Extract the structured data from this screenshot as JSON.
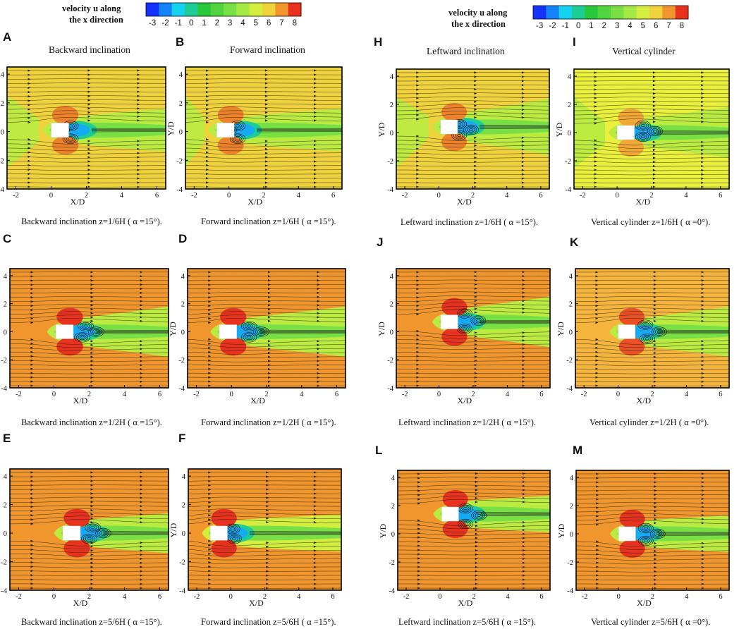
{
  "colors": {
    "u_low": "#1432ff",
    "u_cyan": "#14d2f0",
    "u_green": "#28c83c",
    "u_lightgreen": "#8ce646",
    "u_yellow": "#eaf03c",
    "u_lightorange": "#f5b43c",
    "u_orange": "#f0962d",
    "u_red": "#e8321e",
    "frame": "#000000",
    "bluff_body": "#ffffff",
    "streamline": "#222222"
  },
  "colorbars": [
    {
      "label_line1": "velocity u along",
      "label_line2": "the x direction",
      "ticks": [
        "-3",
        "-2",
        "-1",
        "0",
        "1",
        "2",
        "3",
        "4",
        "5",
        "6",
        "7",
        "8"
      ]
    },
    {
      "label_line1": "velocity u along",
      "label_line2": "the x direction",
      "ticks": [
        "-3",
        "-2",
        "-1",
        "0",
        "1",
        "2",
        "3",
        "4",
        "5",
        "6",
        "7",
        "8"
      ]
    }
  ],
  "chart_data": {
    "type": "heatmap",
    "description_quantity": "velocity u along the x direction",
    "colorbar_range": [
      -3,
      8
    ],
    "column_titles": [
      "Backward inclination",
      "Forward inclination",
      "Leftward inclination",
      "Vertical cylinder"
    ],
    "xlabel": "X/D",
    "ylabel": "Y/D",
    "xlim": [
      -2.5,
      6.5
    ],
    "ylim": [
      -4,
      4.5
    ],
    "x_ticks": [
      "-2",
      "0",
      "2",
      "4",
      "6"
    ],
    "y_ticks": [
      "4",
      "2",
      "0",
      "-2",
      "-4"
    ],
    "panels": [
      {
        "id": "A",
        "title": "Backward inclination",
        "caption": "Backward inclination z=1/6H ( α =15°).",
        "ambient_u": 6,
        "wake_u": 4.5,
        "body_x": 0.5,
        "body_y": 0.1,
        "wake_exit_halfwidth": 1.5,
        "upstream_band": true,
        "eddies": [
          [
            1.1,
            0.4
          ],
          [
            1.1,
            -0.5
          ],
          [
            0.6,
            0.1
          ]
        ]
      },
      {
        "id": "B",
        "title": "Forward inclination",
        "caption": "Forward inclination z=1/6H ( α =15°).",
        "ambient_u": 6,
        "wake_u": 4.5,
        "body_x": -0.2,
        "body_y": 0.1,
        "wake_exit_halfwidth": 1.5,
        "upstream_band": true,
        "eddies": [
          [
            0.5,
            0.4
          ],
          [
            0.5,
            -0.5
          ],
          [
            0.0,
            0.1
          ]
        ]
      },
      {
        "id": "C",
        "title": "",
        "caption": "Backward inclination z=1/2H ( α =15°).",
        "ambient_u": 7,
        "wake_u": 4.5,
        "body_x": 0.6,
        "body_y": 0.0,
        "wake_exit_halfwidth": 1.8,
        "upstream_band": false,
        "eddies": [
          [
            1.8,
            0.4
          ],
          [
            1.6,
            -0.4
          ],
          [
            2.4,
            0.0
          ]
        ]
      },
      {
        "id": "D",
        "title": "",
        "caption": "Forward inclination z=1/2H ( α =15°).",
        "ambient_u": 7,
        "wake_u": 4.5,
        "body_x": -0.2,
        "body_y": 0.0,
        "wake_exit_halfwidth": 1.8,
        "upstream_band": false,
        "eddies": [
          [
            1.0,
            0.4
          ],
          [
            1.0,
            -0.4
          ],
          [
            1.7,
            0.0
          ]
        ]
      },
      {
        "id": "E",
        "title": "",
        "caption": "Backward inclination z=5/6H ( α =15°).",
        "ambient_u": 7,
        "wake_u": 4.5,
        "body_x": 1.0,
        "body_y": 0.0,
        "wake_exit_halfwidth": 1.4,
        "upstream_band": false,
        "eddies": [
          [
            2.2,
            0.4
          ],
          [
            2.0,
            -0.4
          ],
          [
            2.8,
            0.0
          ]
        ]
      },
      {
        "id": "F",
        "title": "",
        "caption": "Forward inclination z=5/6H ( α =15°).",
        "ambient_u": 7,
        "wake_u": 5,
        "body_x": -0.7,
        "body_y": 0.0,
        "wake_exit_halfwidth": 1.3,
        "upstream_band": false,
        "eddies": [
          [
            0.1,
            0.3
          ],
          [
            0.2,
            -0.4
          ]
        ]
      },
      {
        "id": "H",
        "title": "Leftward inclination",
        "caption": "Leftward inclination z=1/6H ( α =15°).",
        "ambient_u": 6,
        "wake_u": 4.5,
        "body_x": 0.6,
        "body_y": 0.4,
        "wake_exit_halfwidth": 2.0,
        "upstream_band": true,
        "eddies": [
          [
            1.2,
            0.6
          ],
          [
            1.2,
            -0.2
          ],
          [
            1.9,
            0.2
          ]
        ]
      },
      {
        "id": "I",
        "title": "Vertical cylinder",
        "caption": "Vertical cylinder z=1/6H ( α =0°).",
        "ambient_u": 5.5,
        "wake_u": 4.5,
        "body_x": 0.5,
        "body_y": 0.0,
        "wake_exit_halfwidth": 1.8,
        "upstream_band": true,
        "eddies": [
          [
            1.5,
            0.5
          ],
          [
            1.5,
            -0.3
          ],
          [
            2.2,
            0.1
          ]
        ]
      },
      {
        "id": "J",
        "title": "",
        "caption": "Leftward inclination z=1/2H ( α =15°).",
        "ambient_u": 7,
        "wake_u": 4.5,
        "body_x": 0.6,
        "body_y": 0.7,
        "wake_exit_halfwidth": 1.8,
        "upstream_band": false,
        "eddies": [
          [
            1.5,
            1.3
          ],
          [
            1.5,
            0.2
          ],
          [
            2.3,
            0.8
          ]
        ]
      },
      {
        "id": "K",
        "title": "",
        "caption": "Vertical cylinder z=1/2H ( α =0°).",
        "ambient_u": 6.5,
        "wake_u": 4.5,
        "body_x": 0.5,
        "body_y": 0.0,
        "wake_exit_halfwidth": 1.8,
        "upstream_band": false,
        "eddies": [
          [
            1.6,
            0.5
          ],
          [
            1.7,
            -0.5
          ],
          [
            2.4,
            0.0
          ]
        ]
      },
      {
        "id": "L",
        "title": "",
        "caption": "Leftward inclination z=5/6H ( α =15°).",
        "ambient_u": 7,
        "wake_u": 4.5,
        "body_x": 0.6,
        "body_y": 1.4,
        "wake_exit_halfwidth": 1.3,
        "upstream_band": false,
        "eddies": [
          [
            1.5,
            1.8
          ],
          [
            1.5,
            0.7
          ],
          [
            2.3,
            1.3
          ]
        ]
      },
      {
        "id": "M",
        "title": "",
        "caption": "Vertical cylinder z=5/6H ( α =0°).",
        "ambient_u": 7,
        "wake_u": 4.5,
        "body_x": 0.5,
        "body_y": 0.0,
        "wake_exit_halfwidth": 1.3,
        "upstream_band": false,
        "eddies": [
          [
            1.6,
            0.4
          ],
          [
            1.6,
            -0.5
          ],
          [
            2.3,
            0.0
          ]
        ]
      }
    ]
  }
}
